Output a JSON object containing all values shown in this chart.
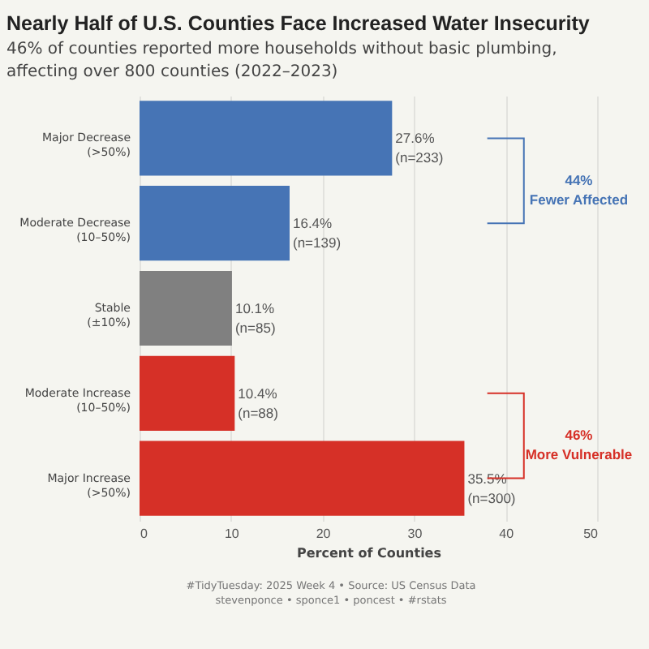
{
  "chart_data": {
    "type": "bar",
    "orientation": "horizontal",
    "title": "Nearly Half of U.S. Counties Face Increased Water Insecurity",
    "subtitle": "46% of counties reported more households without basic plumbing,\naffecting over 800 counties (2022–2023)",
    "xlabel": "Percent of Counties",
    "categories": [
      "Major Decrease\n(>50%)",
      "Moderate Decrease\n(10–50%)",
      "Stable\n(±10%)",
      "Moderate Increase\n(10–50%)",
      "Major Increase\n(>50%)"
    ],
    "values": [
      27.6,
      16.4,
      10.1,
      10.4,
      35.5
    ],
    "colors": [
      "#4674b5",
      "#4674b5",
      "#808080",
      "#d63027",
      "#d63027"
    ],
    "value_labels": [
      "27.6%\n(n=233)",
      "16.4%\n(n=139)",
      "10.1%\n(n=85)",
      "10.4%\n(n=88)",
      "35.5%\n(n=300)"
    ],
    "xlim": [
      0,
      50
    ],
    "xticks": [
      0,
      10,
      20,
      30,
      40,
      50
    ],
    "grid": "x",
    "annotations": [
      "44%\nFewer Affected",
      "46%\nMore Vulnerable",
      "#TidyTuesday: 2025 Week 4 • Source: US Census Data",
      "stevenponce • sponce1 • poncest • #rstats"
    ]
  }
}
